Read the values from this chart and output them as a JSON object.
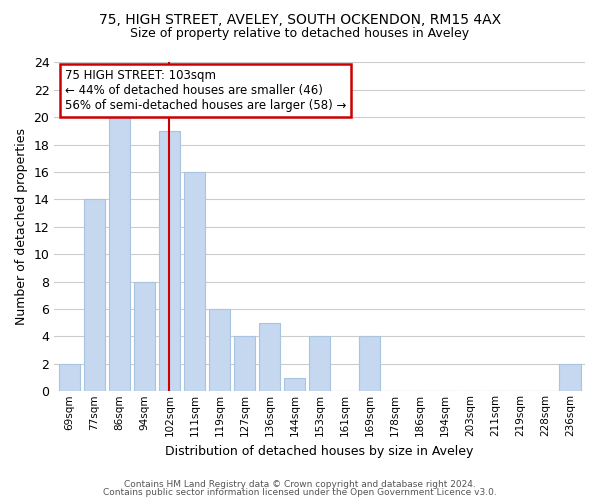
{
  "title1": "75, HIGH STREET, AVELEY, SOUTH OCKENDON, RM15 4AX",
  "title2": "Size of property relative to detached houses in Aveley",
  "xlabel": "Distribution of detached houses by size in Aveley",
  "ylabel": "Number of detached properties",
  "categories": [
    "69sqm",
    "77sqm",
    "86sqm",
    "94sqm",
    "102sqm",
    "111sqm",
    "119sqm",
    "127sqm",
    "136sqm",
    "144sqm",
    "153sqm",
    "161sqm",
    "169sqm",
    "178sqm",
    "186sqm",
    "194sqm",
    "203sqm",
    "211sqm",
    "219sqm",
    "228sqm",
    "236sqm"
  ],
  "values": [
    2,
    14,
    20,
    8,
    19,
    16,
    6,
    4,
    5,
    1,
    4,
    0,
    4,
    0,
    0,
    0,
    0,
    0,
    0,
    0,
    2
  ],
  "bar_color": "#c5d8f0",
  "bar_edge_color": "#a8c4e0",
  "highlight_index": 4,
  "vline_color": "#cc0000",
  "annotation_box_text": "75 HIGH STREET: 103sqm\n← 44% of detached houses are smaller (46)\n56% of semi-detached houses are larger (58) →",
  "annotation_box_edge_color": "#cc0000",
  "annotation_box_face_color": "#ffffff",
  "ylim": [
    0,
    24
  ],
  "yticks": [
    0,
    2,
    4,
    6,
    8,
    10,
    12,
    14,
    16,
    18,
    20,
    22,
    24
  ],
  "footer_line1": "Contains HM Land Registry data © Crown copyright and database right 2024.",
  "footer_line2": "Contains public sector information licensed under the Open Government Licence v3.0.",
  "grid_color": "#cccccc",
  "background_color": "#ffffff"
}
